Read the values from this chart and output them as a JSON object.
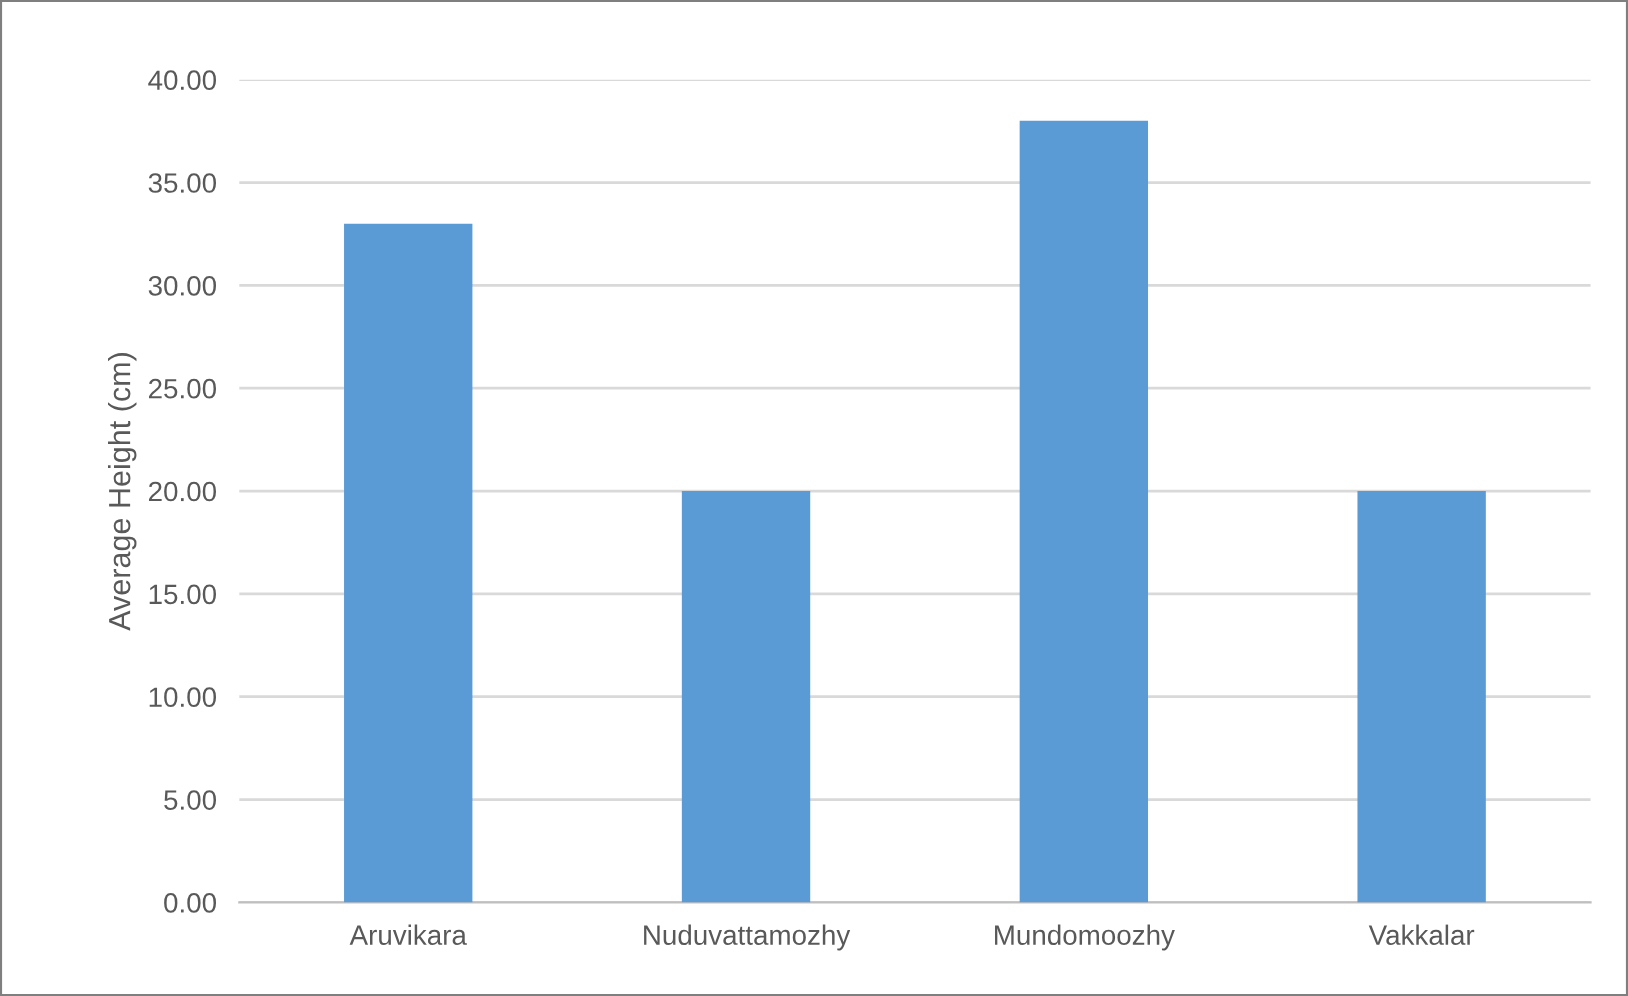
{
  "chart_data": {
    "type": "bar",
    "ylabel": "Average Height (cm)",
    "categories": [
      "Aruvikara",
      "Nuduvattamozhy",
      "Mundomoozhy",
      "Vakkalar"
    ],
    "values": [
      33,
      20,
      38,
      20
    ],
    "color": "#5b9bd5",
    "ylim": [
      0,
      40
    ],
    "yticks": [
      {
        "value": 0,
        "label": "0.00"
      },
      {
        "value": 5,
        "label": "5.00"
      },
      {
        "value": 10,
        "label": "10.00"
      },
      {
        "value": 15,
        "label": "15.00"
      },
      {
        "value": 20,
        "label": "20.00"
      },
      {
        "value": 25,
        "label": "25.00"
      },
      {
        "value": 30,
        "label": "30.00"
      },
      {
        "value": 35,
        "label": "35.00"
      },
      {
        "value": 40,
        "label": "40.00"
      }
    ],
    "grid": "y",
    "legend": false
  }
}
